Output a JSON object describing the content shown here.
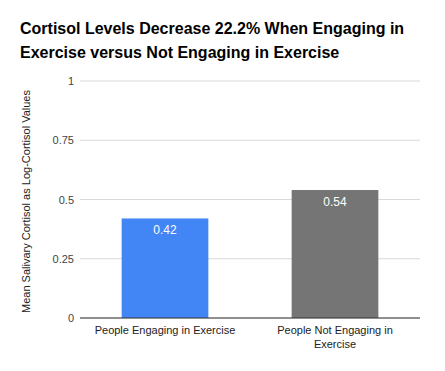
{
  "chart_data": {
    "type": "bar",
    "title": "Cortisol Levels Decrease 22.2% When Engaging in Exercise versus Not Engaging in Exercise",
    "y_label": "Mean Salivary Cortisol as Log-Cortisol Values",
    "categories": [
      "People Engaging in Exercise",
      "People Not Engaging in Exercise"
    ],
    "values": [
      0.42,
      0.54
    ],
    "colors": [
      "#4285f4",
      "#757575"
    ],
    "ylim": [
      0,
      1
    ],
    "yticks": [
      0,
      0.25,
      0.5,
      0.75,
      1
    ],
    "grid": true,
    "data_labels": true
  }
}
